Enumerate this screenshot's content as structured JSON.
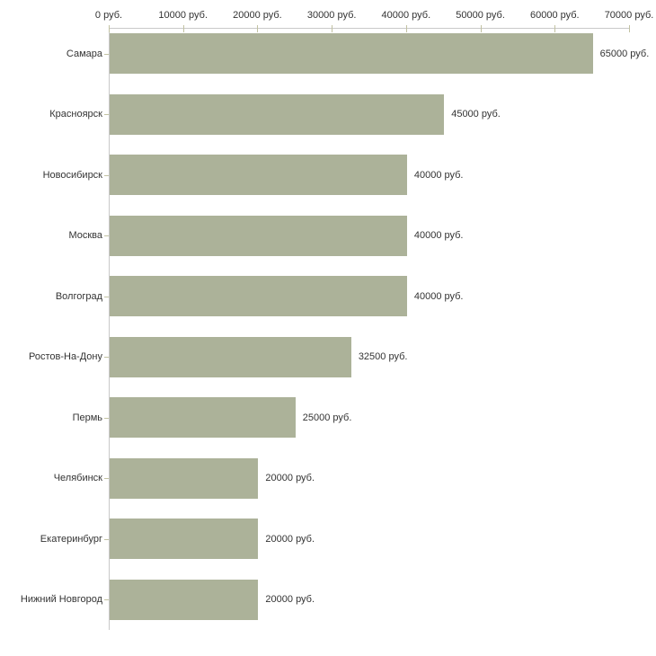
{
  "chart_data": {
    "type": "bar",
    "orientation": "horizontal",
    "title": "",
    "xlabel": "",
    "ylabel": "",
    "unit": "руб.",
    "categories": [
      "Самара",
      "Красноярск",
      "Новосибирск",
      "Москва",
      "Волгоград",
      "Ростов-На-Дону",
      "Пермь",
      "Челябинск",
      "Екатеринбург",
      "Нижний Новгород"
    ],
    "values": [
      65000,
      45000,
      40000,
      40000,
      40000,
      32500,
      25000,
      20000,
      20000,
      20000
    ],
    "value_labels": [
      "65000 руб.",
      "45000 руб.",
      "40000 руб.",
      "40000 руб.",
      "40000 руб.",
      "32500 руб.",
      "25000 руб.",
      "20000 руб.",
      "20000 руб.",
      "20000 руб."
    ],
    "xlim": [
      0,
      70000
    ],
    "x_ticks": [
      0,
      10000,
      20000,
      30000,
      40000,
      50000,
      60000,
      70000
    ],
    "x_tick_labels": [
      "0 руб.",
      "10000 руб.",
      "20000 руб.",
      "30000 руб.",
      "40000 руб.",
      "50000 руб.",
      "60000 руб.",
      "70000 руб."
    ],
    "grid": false,
    "legend": "none",
    "bar_color": "#acb299",
    "axis_color": "#c9c9c9",
    "tick_color": "#c2c2a2",
    "text_color": "#333333",
    "background_color": "#ffffff"
  }
}
